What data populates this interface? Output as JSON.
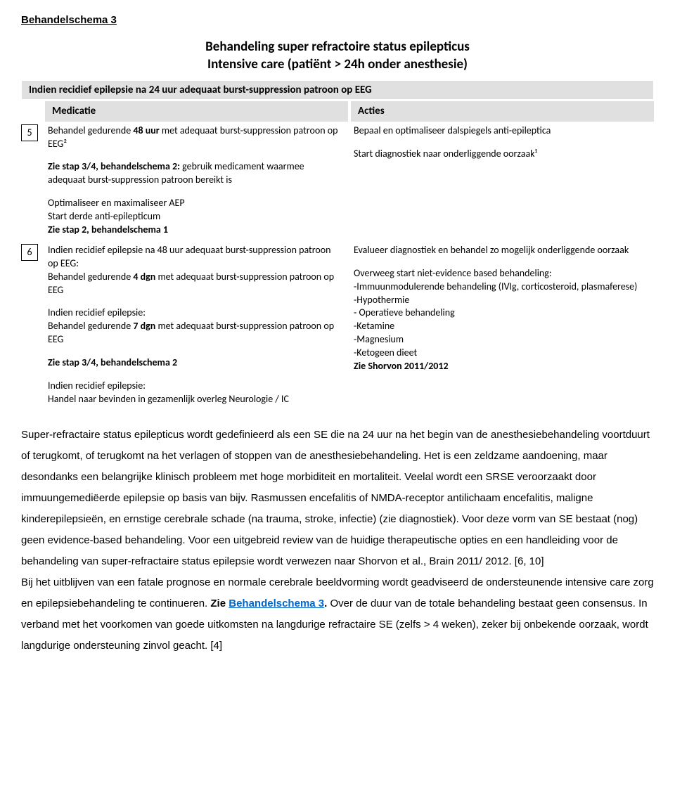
{
  "heading": "Behandelschema 3",
  "title_line1": "Behandeling super refractoire status epilepticus",
  "title_line2": "Intensive care (patiënt > 24h onder anesthesie)",
  "subtitle_bar": "Indien recidief epilepsie na 24 uur adequaat burst-suppression patroon op EEG",
  "col1": "Medicatie",
  "col2": "Acties",
  "step5": {
    "num": "5",
    "med_p1a": "Behandel gedurende ",
    "med_p1b": "48 uur",
    "med_p1c": " met adequaat burst-suppression patroon op EEG²",
    "med_p2a": "Zie stap 3/4, behandelschema 2:",
    "med_p2b": " gebruik medicament waarmee adequaat burst-suppression patroon bereikt is",
    "med_p3a": "Optimaliseer en maximaliseer AEP",
    "med_p3b": "Start derde anti-epilepticum",
    "med_p3c": "Zie stap 2, behandelschema 1",
    "act_p1": "Bepaal en optimaliseer dalspiegels anti-epileptica",
    "act_p2": "Start diagnostiek naar onderliggende oorzaak¹"
  },
  "step6": {
    "num": "6",
    "med_p1a": "Indien recidief epilepsie na 48 uur adequaat burst-suppression patroon op EEG:",
    "med_p1b": "Behandel gedurende ",
    "med_p1c": "4 dgn",
    "med_p1d": " met adequaat burst-suppression patroon op EEG",
    "med_p2a": "Indien recidief epilepsie:",
    "med_p2b": "Behandel gedurende ",
    "med_p2c": "7 dgn",
    "med_p2d": " met adequaat burst-suppression patroon op EEG",
    "med_p3": "Zie stap 3/4, behandelschema 2",
    "med_p4a": "Indien recidief epilepsie:",
    "med_p4b": "Handel naar bevinden in gezamenlijk overleg Neurologie / IC",
    "act_p1": "Evalueer diagnostiek en behandel zo mogelijk onderliggende oorzaak",
    "act_p2a": "Overweeg start niet-evidence based behandeling:",
    "act_l1": "-Immuunmodulerende behandeling (IVIg, corticosteroid, plasmaferese)",
    "act_l2": "-Hypothermie",
    "act_l3": "- Operatieve behandeling",
    "act_l4": "-Ketamine",
    "act_l5": "-Magnesium",
    "act_l6": "-Ketogeen dieet",
    "act_ref": "Zie Shorvon 2011/2012"
  },
  "body": {
    "p1": "Super-refractaire status epilepticus wordt gedefinieerd als een SE die na 24 uur na het begin van de anesthesiebehandeling voortduurt of terugkomt, of terugkomt na het verlagen of stoppen van de anesthesiebehandeling. Het is een zeldzame aandoening, maar desondanks een belangrijke klinisch probleem met hoge morbiditeit en mortaliteit. Veelal wordt een SRSE veroorzaakt door immuungemediëerde epilepsie op basis van bijv. Rasmussen encefalitis of NMDA-receptor antilichaam encefalitis, maligne kinderepilepsieën, en ernstige cerebrale schade (na trauma, stroke, infectie) (zie diagnostiek). Voor deze vorm van SE bestaat (nog) geen evidence-based behandeling. Voor een uitgebreid review van de huidige therapeutische opties en een handleiding voor de behandeling van super-refractaire status epilepsie wordt verwezen naar Shorvon et al., Brain 2011/ 2012. [6, 10]",
    "p2a": "Bij het uitblijven van een fatale prognose en normale cerebrale beeldvorming wordt geadviseerd de ondersteunende intensive care zorg en epilepsiebehandeling te continueren. ",
    "p2b": "Zie ",
    "p2c": "Behandelschema 3",
    "p2d": ".",
    "p2e": " Over de duur van de totale behandeling bestaat geen consensus. In verband met het voorkomen van goede uitkomsten na langdurige refractaire SE (zelfs > 4 weken), zeker bij onbekende oorzaak, wordt langdurige ondersteuning zinvol geacht. [4]"
  }
}
